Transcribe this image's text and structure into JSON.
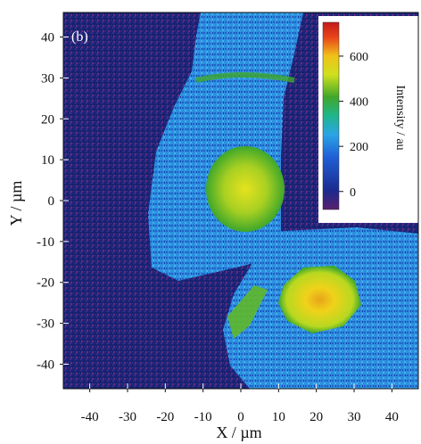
{
  "chart_data": {
    "type": "heatmap",
    "panel_label": "(b)",
    "xlabel": "X / µm",
    "ylabel": "Y / µm",
    "xlim": [
      -47,
      47
    ],
    "ylim": [
      -46,
      46
    ],
    "x_ticks": [
      -40,
      -30,
      -20,
      -10,
      0,
      10,
      20,
      30,
      40
    ],
    "y_ticks": [
      -40,
      -30,
      -20,
      -10,
      0,
      10,
      20,
      30,
      40
    ],
    "colorbar": {
      "label": "Intensity / au",
      "ticks": [
        0,
        200,
        400,
        600
      ],
      "range": [
        -80,
        750
      ],
      "colors": [
        "#5a1f6e",
        "#1c2a8e",
        "#1f5fd6",
        "#2aa4e6",
        "#1fb58c",
        "#3fa72a",
        "#cfe01e",
        "#f0c21a",
        "#e8441a",
        "#c41a1a"
      ]
    },
    "regions": [
      {
        "name": "background",
        "intensity": 0
      },
      {
        "name": "cell body",
        "intensity": 180
      },
      {
        "name": "nucleus upper",
        "x": -6,
        "y": 3,
        "intensity": 450
      },
      {
        "name": "nucleus lower",
        "x": 20,
        "y": -27,
        "intensity": 600
      }
    ]
  }
}
